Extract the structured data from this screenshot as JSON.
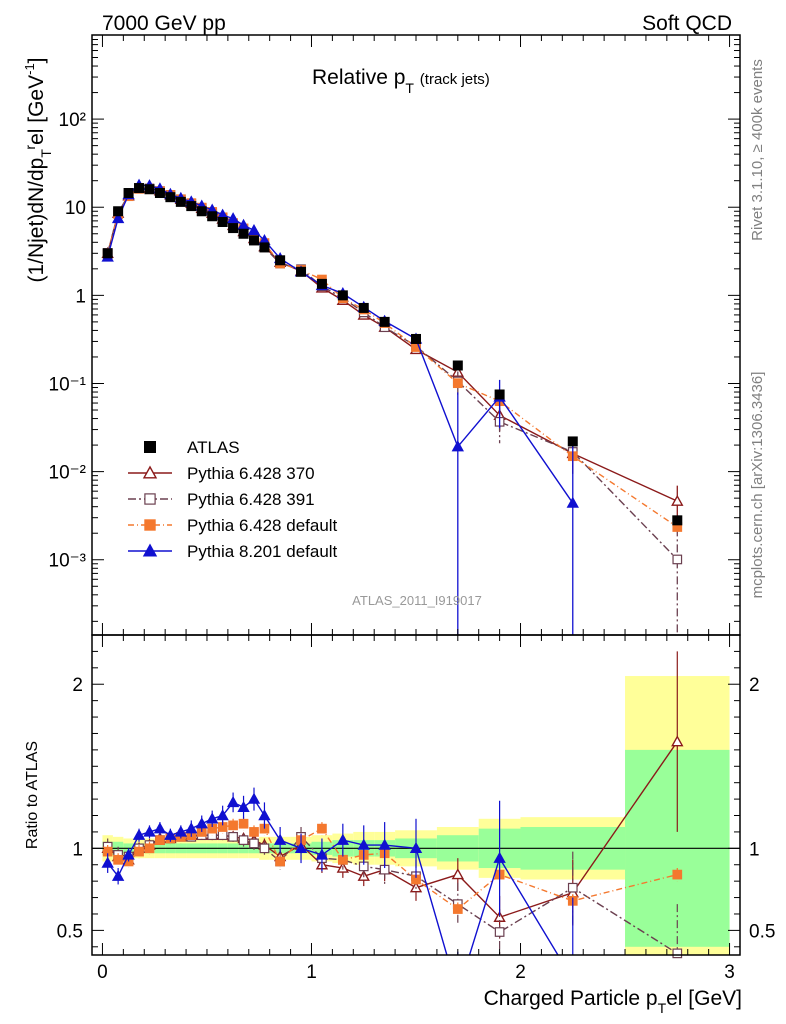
{
  "header": {
    "left": "7000 GeV pp",
    "right": "Soft QCD",
    "rivet": "Rivet 3.1.10, ≥ 400k events",
    "mcplots": "mcplots.cern.ch [arXiv:1306.3436]"
  },
  "chart_data": {
    "type": "scatter",
    "title": "Relative p",
    "title_sub": "T",
    "title_suffix": "(track jets)",
    "analysis_id": "ATLAS_2011_I919017",
    "xlabel": "Charged Particle p",
    "xlabel_sub": "T",
    "xlabel_suffix": "el [GeV]",
    "ylabel": "(1/Njet)dN/dp",
    "ylabel_sub": "T",
    "ylabel_sup": "r",
    "ylabel_tail": "el [GeV",
    "ylabel_exp": "-1",
    "ylabel_close": "]",
    "ratio_ylabel": "Ratio to ATLAS",
    "xlim": [
      -0.05,
      3.05
    ],
    "ylim": [
      0.00014,
      900
    ],
    "yscale": "log",
    "ratio_ylim": [
      0.35,
      2.3
    ],
    "x_ticks": [
      "0",
      "1",
      "2",
      "3"
    ],
    "y_ticks": [
      "10⁻³",
      "10⁻²",
      "10⁻¹",
      "1",
      "10",
      "10²"
    ],
    "ratio_ticks": [
      "0.5",
      "1",
      "2"
    ],
    "legend_position": "lower-left",
    "x": [
      0.025,
      0.075,
      0.125,
      0.175,
      0.225,
      0.275,
      0.325,
      0.375,
      0.425,
      0.475,
      0.525,
      0.575,
      0.625,
      0.675,
      0.725,
      0.775,
      0.85,
      0.95,
      1.05,
      1.15,
      1.25,
      1.35,
      1.5,
      1.7,
      1.9,
      2.25,
      2.75
    ],
    "bin_edges": [
      0,
      0.05,
      0.1,
      0.15,
      0.2,
      0.25,
      0.3,
      0.35,
      0.4,
      0.45,
      0.5,
      0.55,
      0.6,
      0.65,
      0.7,
      0.75,
      0.8,
      0.9,
      1.0,
      1.1,
      1.2,
      1.3,
      1.4,
      1.6,
      1.8,
      2.0,
      2.5,
      3.0
    ],
    "data": {
      "name": "ATLAS",
      "values": [
        3.0,
        9.0,
        14.5,
        16.5,
        16.0,
        14.5,
        13.0,
        11.5,
        10.3,
        9.0,
        7.9,
        6.8,
        5.8,
        5.0,
        4.2,
        3.5,
        2.5,
        1.85,
        1.35,
        1.0,
        0.72,
        0.5,
        0.32,
        0.16,
        0.075,
        0.022,
        0.0028
      ],
      "band_inner": [
        0.04,
        0.04,
        0.03,
        0.03,
        0.03,
        0.03,
        0.03,
        0.03,
        0.03,
        0.03,
        0.03,
        0.03,
        0.03,
        0.03,
        0.03,
        0.03,
        0.03,
        0.03,
        0.04,
        0.05,
        0.05,
        0.05,
        0.06,
        0.08,
        0.12,
        0.13,
        0.6
      ],
      "band_outer": [
        0.08,
        0.07,
        0.06,
        0.06,
        0.06,
        0.06,
        0.06,
        0.06,
        0.06,
        0.06,
        0.06,
        0.06,
        0.06,
        0.06,
        0.06,
        0.07,
        0.07,
        0.07,
        0.08,
        0.09,
        0.1,
        0.1,
        0.11,
        0.13,
        0.18,
        0.19,
        1.05
      ]
    },
    "series": [
      {
        "name": "Pythia 6.428 370",
        "color": "#8B1A1A",
        "marker": "open-triangle",
        "dash": "",
        "ratio": [
          1.0,
          0.95,
          0.93,
          1.0,
          1.02,
          1.06,
          1.06,
          1.07,
          1.08,
          1.08,
          1.08,
          1.08,
          1.07,
          1.06,
          1.05,
          1.02,
          0.95,
          1.02,
          0.9,
          0.88,
          0.83,
          0.87,
          0.76,
          0.84,
          0.58,
          0.73,
          1.65
        ],
        "ratio_err": [
          0.04,
          0.04,
          0.03,
          0.02,
          0.02,
          0.02,
          0.02,
          0.02,
          0.02,
          0.02,
          0.03,
          0.03,
          0.03,
          0.03,
          0.03,
          0.04,
          0.04,
          0.05,
          0.05,
          0.06,
          0.06,
          0.07,
          0.08,
          0.1,
          0.13,
          0.2,
          0.55
        ]
      },
      {
        "name": "Pythia 6.428 391",
        "color": "#6B4050",
        "marker": "open-square",
        "dash": "8,3,2,3",
        "ratio": [
          1.01,
          0.96,
          0.95,
          1.0,
          1.02,
          1.05,
          1.06,
          1.07,
          1.07,
          1.08,
          1.08,
          1.08,
          1.07,
          1.05,
          1.03,
          1.0,
          0.92,
          1.07,
          0.94,
          0.93,
          0.89,
          0.87,
          0.83,
          0.66,
          0.49,
          0.76,
          0.36
        ],
        "ratio_err": [
          0.05,
          0.05,
          0.03,
          0.03,
          0.02,
          0.02,
          0.02,
          0.02,
          0.03,
          0.03,
          0.03,
          0.03,
          0.03,
          0.04,
          0.04,
          0.04,
          0.05,
          0.06,
          0.06,
          0.06,
          0.08,
          0.09,
          0.1,
          0.13,
          0.14,
          0.22,
          0.3
        ]
      },
      {
        "name": "Pythia 6.428 default",
        "color": "#F4782E",
        "marker": "filled-square",
        "dash": "6,3,1,3",
        "ratio": [
          0.98,
          0.93,
          0.92,
          0.98,
          1.0,
          1.05,
          1.06,
          1.07,
          1.08,
          1.1,
          1.12,
          1.13,
          1.14,
          1.15,
          1.1,
          1.12,
          0.92,
          1.05,
          1.12,
          0.93,
          0.96,
          0.97,
          0.81,
          0.63,
          0.84,
          0.68,
          0.84
        ]
      },
      {
        "name": "Pythia 8.201 default",
        "color": "#1010D0",
        "marker": "filled-triangle",
        "dash": "",
        "ratio": [
          0.91,
          0.83,
          0.96,
          1.08,
          1.1,
          1.12,
          1.08,
          1.1,
          1.12,
          1.15,
          1.18,
          1.2,
          1.28,
          1.25,
          1.3,
          1.2,
          1.05,
          1.0,
          0.96,
          1.05,
          1.02,
          1.02,
          1.0,
          0.12,
          0.94,
          0.2,
          null
        ],
        "ratio_err": [
          0.06,
          0.05,
          0.04,
          0.04,
          0.04,
          0.04,
          0.04,
          0.04,
          0.05,
          0.05,
          0.05,
          0.06,
          0.06,
          0.07,
          0.07,
          0.08,
          0.08,
          0.09,
          0.1,
          0.1,
          0.12,
          0.14,
          0.18,
          0.25,
          0.35,
          0.5,
          null
        ]
      }
    ]
  }
}
